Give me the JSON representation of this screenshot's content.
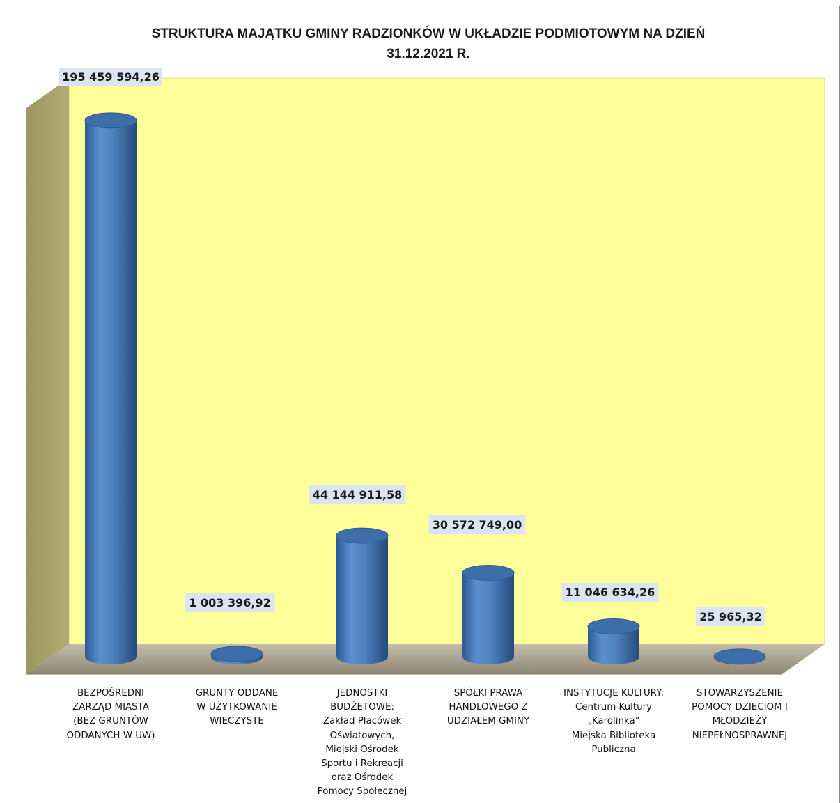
{
  "chart_data": {
    "type": "bar",
    "style": "3d-cylinder",
    "title": "STRUKTURA  MAJĄTKU GMINY RADZIONKÓW W UKŁADZIE PODMIOTOWYM NA DZIEŃ 31.12.2021 R.",
    "title_lines": [
      "STRUKTURA  MAJĄTKU GMINY RADZIONKÓW W UKŁADZIE PODMIOTOWYM NA DZIEŃ",
      "31.12.2021 R."
    ],
    "categories": [
      [
        "BEZPOŚREDNI",
        "ZARZĄD MIASTA",
        "(BEZ GRUNTÓW",
        "ODDANYCH W UW)"
      ],
      [
        "GRUNTY ODDANE",
        "W UŻYTKOWANIE",
        "WIECZYSTE"
      ],
      [
        "JEDNOSTKI",
        "BUDŻETOWE:",
        "Zakład Placówek",
        "Oświatowych,",
        "Miejski Ośrodek",
        "Sportu i Rekreacji",
        "oraz Ośrodek",
        "Pomocy Społecznej"
      ],
      [
        "SPÓŁKI PRAWA",
        "HANDLOWEGO Z",
        "UDZIAŁEM GMINY"
      ],
      [
        "INSTYTUCJE KULTURY:",
        "Centrum Kultury",
        "„Karolinka”",
        "Miejska Biblioteka",
        "Publiczna"
      ],
      [
        "STOWARZYSZENIE",
        "POMOCY DZIECIOM I",
        "MŁODZIEŻY",
        "NIEPEŁNOSPRAWNEJ"
      ]
    ],
    "values": [
      195459594.26,
      1003396.92,
      44144911.58,
      30572749.0,
      11046634.26,
      25965.32
    ],
    "data_labels": [
      "195 459 594,26",
      "1 003 396,92",
      "44 144 911,58",
      "30 572 749,00",
      "11 046 634,26",
      "25 965,32"
    ],
    "ylim": [
      0,
      200000000
    ],
    "grid": false,
    "legend": "none",
    "colors": {
      "bar": "#4f81bd",
      "bar_dark": "#2f5a8e",
      "bar_top": "#3d6ea9",
      "back_wall": "#ffff99",
      "side_wall": "#a5a065",
      "floor": "#a49d8a",
      "label_bg": "#dbe5f1",
      "border": "#808080"
    }
  }
}
